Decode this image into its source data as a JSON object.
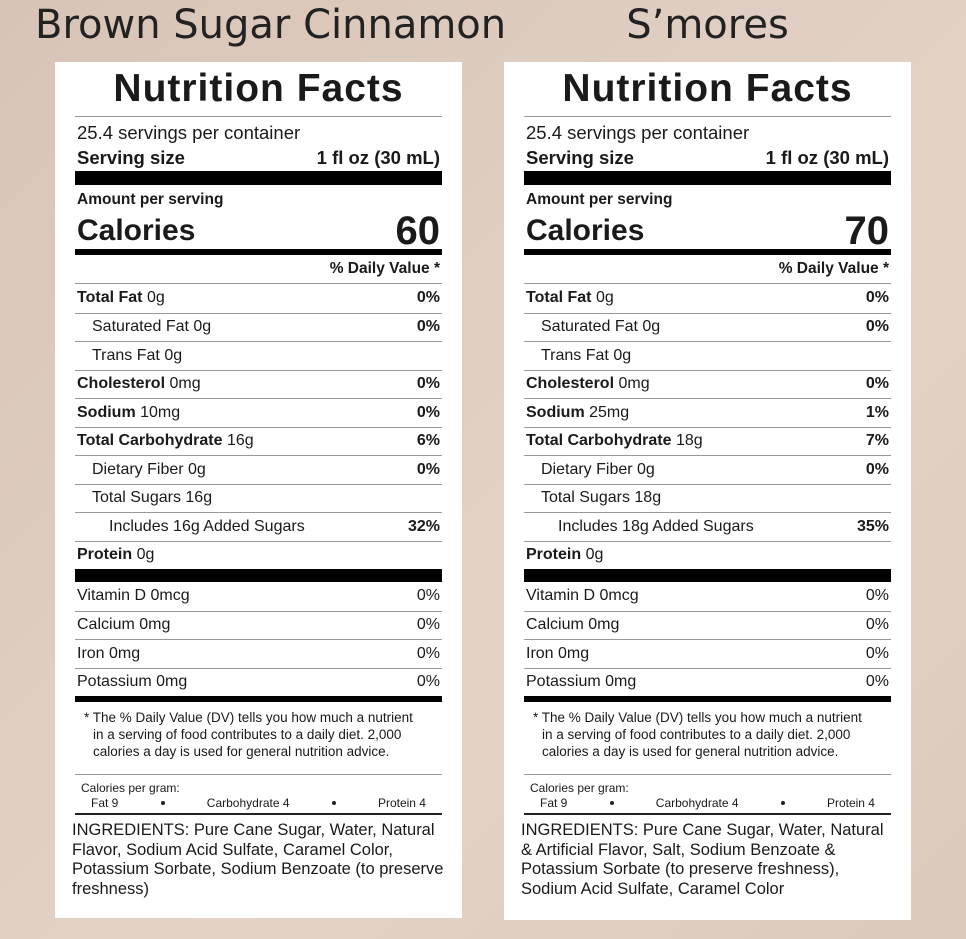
{
  "panels": [
    {
      "title": "Brown Sugar Cinnamon",
      "label": {
        "heading": "Nutrition Facts",
        "servings": "25.4 servings per container",
        "serving_size_label": "Serving size",
        "serving_size": "1 fl oz (30 mL)",
        "amount_per_serving": "Amount per serving",
        "calories_label": "Calories",
        "calories": 60,
        "daily_value_header": "% Daily Value *",
        "nutrients": [
          {
            "name": "Total Fat",
            "amount": "0g",
            "dv": "0%",
            "subrows": [
              {
                "name": "Saturated Fat",
                "amount": "0g",
                "dv": "0%"
              },
              {
                "name": "Trans Fat",
                "amount": "0g"
              }
            ]
          },
          {
            "name": "Cholesterol",
            "amount": "0mg",
            "dv": "0%"
          },
          {
            "name": "Sodium",
            "amount": "10mg",
            "dv": "0%"
          },
          {
            "name": "Total Carbohydrate",
            "amount": "16g",
            "dv": "6%",
            "subrows": [
              {
                "name": "Dietary Fiber",
                "amount": "0g",
                "dv": "0%"
              },
              {
                "name": "Total Sugars",
                "amount": "16g",
                "subrows": [
                  {
                    "name": "Includes 16g Added Sugars",
                    "dv": "32%"
                  }
                ]
              }
            ]
          },
          {
            "name": "Protein",
            "amount": "0g"
          }
        ],
        "vitamins": [
          {
            "name": "Vitamin D 0mcg",
            "dv": "0%"
          },
          {
            "name": "Calcium 0mg",
            "dv": "0%"
          },
          {
            "name": "Iron 0mg",
            "dv": "0%"
          },
          {
            "name": "Potassium 0mg",
            "dv": "0%"
          }
        ],
        "footnote": "* The % Daily Value (DV) tells you how much a nutrient in a serving of food contributes to a daily diet. 2,000 calories a day is used for general nutrition advice.",
        "calories_per_gram_label": "Calories per gram:",
        "calories_per_gram": [
          "Fat 9",
          "Carbohydrate 4",
          "Protein 4"
        ],
        "ingredients": "INGREDIENTS: Pure Cane Sugar, Water, Natural Flavor, Sodium Acid Sulfate, Caramel Color, Potassium Sorbate, Sodium Benzoate (to preserve freshness)"
      }
    },
    {
      "title": "S’mores",
      "label": {
        "heading": "Nutrition Facts",
        "servings": "25.4 servings per container",
        "serving_size_label": "Serving size",
        "serving_size": "1 fl oz (30 mL)",
        "amount_per_serving": "Amount per serving",
        "calories_label": "Calories",
        "calories": 70,
        "daily_value_header": "% Daily Value *",
        "nutrients": [
          {
            "name": "Total Fat",
            "amount": "0g",
            "dv": "0%",
            "subrows": [
              {
                "name": "Saturated Fat",
                "amount": "0g",
                "dv": "0%"
              },
              {
                "name": "Trans Fat",
                "amount": "0g"
              }
            ]
          },
          {
            "name": "Cholesterol",
            "amount": "0mg",
            "dv": "0%"
          },
          {
            "name": "Sodium",
            "amount": "25mg",
            "dv": "1%"
          },
          {
            "name": "Total Carbohydrate",
            "amount": "18g",
            "dv": "7%",
            "subrows": [
              {
                "name": "Dietary Fiber",
                "amount": "0g",
                "dv": "0%"
              },
              {
                "name": "Total Sugars",
                "amount": "18g",
                "subrows": [
                  {
                    "name": "Includes 18g Added Sugars",
                    "dv": "35%"
                  }
                ]
              }
            ]
          },
          {
            "name": "Protein",
            "amount": "0g"
          }
        ],
        "vitamins": [
          {
            "name": "Vitamin D 0mcg",
            "dv": "0%"
          },
          {
            "name": "Calcium 0mg",
            "dv": "0%"
          },
          {
            "name": "Iron 0mg",
            "dv": "0%"
          },
          {
            "name": "Potassium 0mg",
            "dv": "0%"
          }
        ],
        "footnote": "* The % Daily Value (DV) tells you how much a nutrient in a serving of food contributes to a daily diet. 2,000 calories a day is used for general nutrition advice.",
        "calories_per_gram_label": "Calories per gram:",
        "calories_per_gram": [
          "Fat 9",
          "Carbohydrate 4",
          "Protein 4"
        ],
        "ingredients": "INGREDIENTS: Pure Cane Sugar, Water, Natural & Artificial Flavor, Salt, Sodium Benzoate & Potassium Sorbate (to preserve freshness), Sodium Acid Sulfate, Caramel Color"
      }
    }
  ]
}
